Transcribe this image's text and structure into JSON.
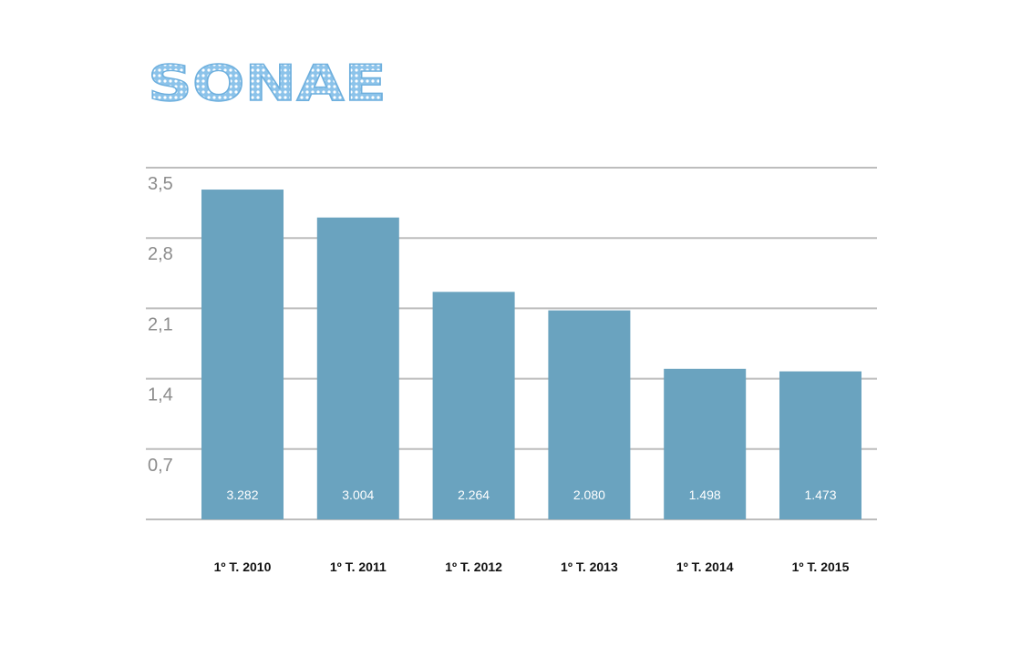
{
  "brand": {
    "logo_text": "SONAE",
    "logo_color": "#7fbde6"
  },
  "chart_data": {
    "type": "bar",
    "categories": [
      "1º T. 2010",
      "1º T. 2011",
      "1º T. 2012",
      "1º T. 2013",
      "1º T. 2014",
      "1º T. 2015"
    ],
    "values": [
      3.282,
      3.004,
      2.264,
      2.08,
      1.498,
      1.473
    ],
    "data_labels": [
      "3.282",
      "3.004",
      "2.264",
      "2.080",
      "1.498",
      "1.473"
    ],
    "y_ticks": [
      0.7,
      1.4,
      2.1,
      2.8,
      3.5
    ],
    "y_tick_labels": [
      "0,7",
      "1,4",
      "2,1",
      "2,8",
      "3,5"
    ],
    "ylim": [
      0,
      3.5
    ],
    "grid": true,
    "legend": "none",
    "bar_color": "#6aa3bf",
    "grid_color": "#bdbdbd",
    "title": "",
    "xlabel": "",
    "ylabel": ""
  }
}
